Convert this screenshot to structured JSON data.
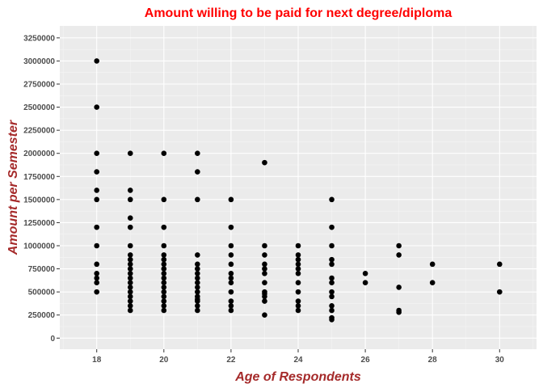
{
  "chart_data": {
    "type": "scatter",
    "title": "Amount willing to be paid for next degree/diploma",
    "xlabel": "Age of Respondents",
    "ylabel": "Amount per Semester",
    "xlim": [
      16.9,
      31.1
    ],
    "ylim": [
      -120000,
      3380000
    ],
    "x_ticks": [
      18,
      20,
      22,
      24,
      26,
      28,
      30
    ],
    "x_minor_ticks": [
      17,
      19,
      21,
      23,
      25,
      27,
      29,
      31
    ],
    "y_ticks": [
      0,
      250000,
      500000,
      750000,
      1000000,
      1250000,
      1500000,
      1750000,
      2000000,
      2250000,
      2500000,
      2750000,
      3000000,
      3250000
    ],
    "grid": true,
    "background": "#ebebeb",
    "point_color": "#000000",
    "points": [
      {
        "x": 18,
        "y": 3000000
      },
      {
        "x": 18,
        "y": 2500000
      },
      {
        "x": 18,
        "y": 2000000
      },
      {
        "x": 18,
        "y": 1800000
      },
      {
        "x": 18,
        "y": 1600000
      },
      {
        "x": 18,
        "y": 1500000
      },
      {
        "x": 18,
        "y": 1200000
      },
      {
        "x": 18,
        "y": 1000000
      },
      {
        "x": 18,
        "y": 800000
      },
      {
        "x": 18,
        "y": 700000
      },
      {
        "x": 18,
        "y": 650000
      },
      {
        "x": 18,
        "y": 600000
      },
      {
        "x": 18,
        "y": 500000
      },
      {
        "x": 19,
        "y": 2000000
      },
      {
        "x": 19,
        "y": 1600000
      },
      {
        "x": 19,
        "y": 1500000
      },
      {
        "x": 19,
        "y": 1300000
      },
      {
        "x": 19,
        "y": 1200000
      },
      {
        "x": 19,
        "y": 1000000
      },
      {
        "x": 19,
        "y": 900000
      },
      {
        "x": 19,
        "y": 850000
      },
      {
        "x": 19,
        "y": 800000
      },
      {
        "x": 19,
        "y": 750000
      },
      {
        "x": 19,
        "y": 700000
      },
      {
        "x": 19,
        "y": 650000
      },
      {
        "x": 19,
        "y": 600000
      },
      {
        "x": 19,
        "y": 550000
      },
      {
        "x": 19,
        "y": 500000
      },
      {
        "x": 19,
        "y": 450000
      },
      {
        "x": 19,
        "y": 400000
      },
      {
        "x": 19,
        "y": 350000
      },
      {
        "x": 19,
        "y": 300000
      },
      {
        "x": 20,
        "y": 2000000
      },
      {
        "x": 20,
        "y": 1500000
      },
      {
        "x": 20,
        "y": 1200000
      },
      {
        "x": 20,
        "y": 1000000
      },
      {
        "x": 20,
        "y": 900000
      },
      {
        "x": 20,
        "y": 850000
      },
      {
        "x": 20,
        "y": 800000
      },
      {
        "x": 20,
        "y": 750000
      },
      {
        "x": 20,
        "y": 700000
      },
      {
        "x": 20,
        "y": 650000
      },
      {
        "x": 20,
        "y": 600000
      },
      {
        "x": 20,
        "y": 550000
      },
      {
        "x": 20,
        "y": 500000
      },
      {
        "x": 20,
        "y": 450000
      },
      {
        "x": 20,
        "y": 400000
      },
      {
        "x": 20,
        "y": 350000
      },
      {
        "x": 20,
        "y": 300000
      },
      {
        "x": 21,
        "y": 2000000
      },
      {
        "x": 21,
        "y": 1800000
      },
      {
        "x": 21,
        "y": 1500000
      },
      {
        "x": 21,
        "y": 900000
      },
      {
        "x": 21,
        "y": 800000
      },
      {
        "x": 21,
        "y": 750000
      },
      {
        "x": 21,
        "y": 700000
      },
      {
        "x": 21,
        "y": 650000
      },
      {
        "x": 21,
        "y": 600000
      },
      {
        "x": 21,
        "y": 550000
      },
      {
        "x": 21,
        "y": 500000
      },
      {
        "x": 21,
        "y": 450000
      },
      {
        "x": 21,
        "y": 420000
      },
      {
        "x": 21,
        "y": 400000
      },
      {
        "x": 21,
        "y": 350000
      },
      {
        "x": 21,
        "y": 300000
      },
      {
        "x": 22,
        "y": 1500000
      },
      {
        "x": 22,
        "y": 1200000
      },
      {
        "x": 22,
        "y": 1000000
      },
      {
        "x": 22,
        "y": 900000
      },
      {
        "x": 22,
        "y": 800000
      },
      {
        "x": 22,
        "y": 700000
      },
      {
        "x": 22,
        "y": 650000
      },
      {
        "x": 22,
        "y": 600000
      },
      {
        "x": 22,
        "y": 500000
      },
      {
        "x": 22,
        "y": 400000
      },
      {
        "x": 22,
        "y": 350000
      },
      {
        "x": 22,
        "y": 300000
      },
      {
        "x": 23,
        "y": 1900000
      },
      {
        "x": 23,
        "y": 1000000
      },
      {
        "x": 23,
        "y": 900000
      },
      {
        "x": 23,
        "y": 800000
      },
      {
        "x": 23,
        "y": 750000
      },
      {
        "x": 23,
        "y": 700000
      },
      {
        "x": 23,
        "y": 600000
      },
      {
        "x": 23,
        "y": 500000
      },
      {
        "x": 23,
        "y": 480000
      },
      {
        "x": 23,
        "y": 450000
      },
      {
        "x": 23,
        "y": 400000
      },
      {
        "x": 23,
        "y": 250000
      },
      {
        "x": 24,
        "y": 1000000
      },
      {
        "x": 24,
        "y": 900000
      },
      {
        "x": 24,
        "y": 850000
      },
      {
        "x": 24,
        "y": 800000
      },
      {
        "x": 24,
        "y": 750000
      },
      {
        "x": 24,
        "y": 700000
      },
      {
        "x": 24,
        "y": 600000
      },
      {
        "x": 24,
        "y": 500000
      },
      {
        "x": 24,
        "y": 400000
      },
      {
        "x": 24,
        "y": 350000
      },
      {
        "x": 24,
        "y": 300000
      },
      {
        "x": 25,
        "y": 1500000
      },
      {
        "x": 25,
        "y": 1200000
      },
      {
        "x": 25,
        "y": 1000000
      },
      {
        "x": 25,
        "y": 850000
      },
      {
        "x": 25,
        "y": 800000
      },
      {
        "x": 25,
        "y": 650000
      },
      {
        "x": 25,
        "y": 600000
      },
      {
        "x": 25,
        "y": 500000
      },
      {
        "x": 25,
        "y": 450000
      },
      {
        "x": 25,
        "y": 350000
      },
      {
        "x": 25,
        "y": 300000
      },
      {
        "x": 25,
        "y": 220000
      },
      {
        "x": 25,
        "y": 200000
      },
      {
        "x": 26,
        "y": 700000
      },
      {
        "x": 26,
        "y": 600000
      },
      {
        "x": 27,
        "y": 1000000
      },
      {
        "x": 27,
        "y": 900000
      },
      {
        "x": 27,
        "y": 550000
      },
      {
        "x": 27,
        "y": 300000
      },
      {
        "x": 27,
        "y": 280000
      },
      {
        "x": 28,
        "y": 800000
      },
      {
        "x": 28,
        "y": 600000
      },
      {
        "x": 30,
        "y": 800000
      },
      {
        "x": 30,
        "y": 500000
      }
    ]
  }
}
